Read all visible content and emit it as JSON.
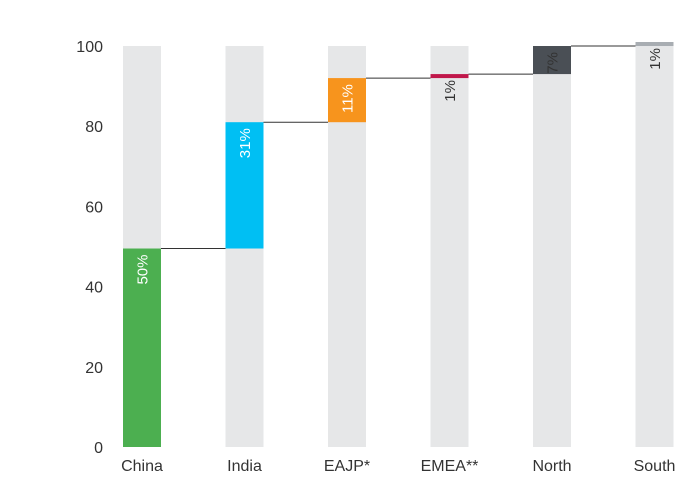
{
  "chart_data": {
    "type": "bar",
    "subtype": "waterfall",
    "categories": [
      "China",
      "India",
      "EAJP*",
      "EMEA**",
      "North",
      "South"
    ],
    "values": [
      50,
      31,
      11,
      1,
      7,
      1
    ],
    "labels": [
      "50%",
      "31%",
      "11%",
      "1%",
      "7%",
      "1%"
    ],
    "cumulative_end": [
      49.5,
      81,
      92,
      93,
      100,
      101
    ],
    "colors": [
      "#4CAF50",
      "#00BFF3",
      "#F7941D",
      "#C0174A",
      "#4A4F55",
      "#A8ADB2"
    ],
    "label_colors": [
      "#ffffff",
      "#ffffff",
      "#ffffff",
      "#333333",
      "#333333",
      "#333333"
    ],
    "background_bar_color": "#E6E7E8",
    "connector_color": "#333333",
    "y_ticks": [
      0,
      20,
      40,
      60,
      80,
      100
    ],
    "ylim": [
      0,
      101
    ],
    "grid": false,
    "title": "",
    "xlabel": "",
    "ylabel": ""
  }
}
